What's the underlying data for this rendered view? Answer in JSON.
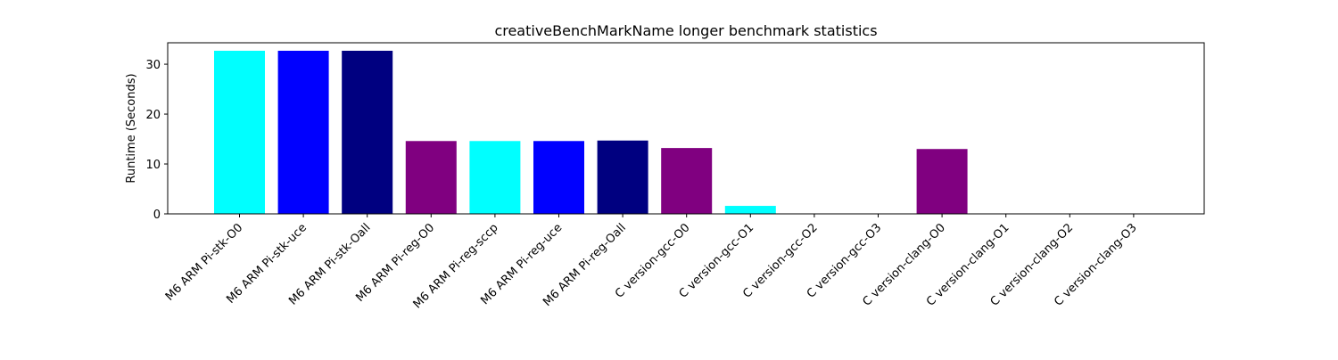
{
  "chart_data": {
    "type": "bar",
    "title": "creativeBenchMarkName longer benchmark statistics",
    "xlabel": "",
    "ylabel": "Runtime (Seconds)",
    "ylim": [
      0,
      34.3
    ],
    "yticks": [
      0,
      10,
      20,
      30
    ],
    "grid": false,
    "categories": [
      "M6 ARM Pi-stk-O0",
      "M6 ARM Pi-stk-uce",
      "M6 ARM Pi-stk-Oall",
      "M6 ARM Pi-reg-O0",
      "M6 ARM Pi-reg-sccp",
      "M6 ARM Pi-reg-uce",
      "M6 ARM Pi-reg-Oall",
      "C version-gcc-O0",
      "C version-gcc-O1",
      "C version-gcc-O2",
      "C version-gcc-O3",
      "C version-clang-O0",
      "C version-clang-O1",
      "C version-clang-O2",
      "C version-clang-O3"
    ],
    "values": [
      32.7,
      32.7,
      32.7,
      14.6,
      14.6,
      14.6,
      14.7,
      13.2,
      1.6,
      0.05,
      0.05,
      13.0,
      0.05,
      0.05,
      0.05
    ],
    "colors": [
      "#00ffff",
      "#0000ff",
      "#000080",
      "#800080",
      "#00ffff",
      "#0000ff",
      "#000080",
      "#800080",
      "#00ffff",
      "#0000ff",
      "#000080",
      "#800080",
      "#00ffff",
      "#0000ff",
      "#000080"
    ]
  }
}
